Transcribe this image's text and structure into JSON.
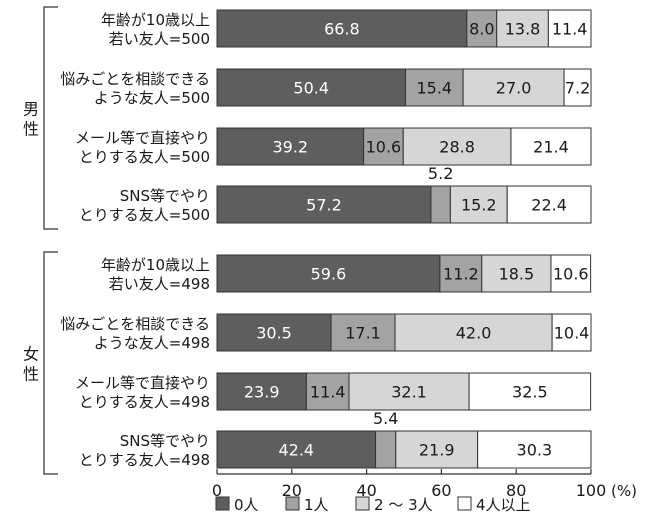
{
  "chart_data": {
    "type": "bar",
    "orientation": "horizontal",
    "stacked": true,
    "percent": true,
    "xlim": [
      0,
      100
    ],
    "x_ticks": [
      "0",
      "20",
      "40",
      "60",
      "80",
      "100"
    ],
    "x_unit": "(%)",
    "grid": false,
    "legend_position": "bottom",
    "series_colors": [
      "#5e5e5e",
      "#a3a3a3",
      "#d6d6d6",
      "#ffffff"
    ],
    "series": [
      {
        "name": "0人"
      },
      {
        "name": "1人"
      },
      {
        "name": "2 〜 3人"
      },
      {
        "name": "4人以上"
      }
    ],
    "groups": [
      {
        "label": "男性",
        "rows": [
          {
            "line1": "年齢が10歳以上",
            "line2": "若い友人=500",
            "values": [
              66.8,
              8.0,
              13.8,
              11.4
            ],
            "labels": [
              "66.8",
              "8.0",
              "13.8",
              "11.4"
            ]
          },
          {
            "line1": "悩みごとを相談できる",
            "line2": "ような友人=500",
            "values": [
              50.4,
              15.4,
              27.0,
              7.2
            ],
            "labels": [
              "50.4",
              "15.4",
              "27.0",
              "7.2"
            ]
          },
          {
            "line1": "メール等で直接やり",
            "line2": "とりする友人=500",
            "values": [
              39.2,
              10.6,
              28.8,
              21.4
            ],
            "labels": [
              "39.2",
              "10.6",
              "28.8",
              "21.4"
            ]
          },
          {
            "line1": "SNS等でやり",
            "line2": "とりする友人=500",
            "values": [
              57.2,
              5.2,
              15.2,
              22.4
            ],
            "labels": [
              "57.2",
              "5.2",
              "15.2",
              "22.4"
            ],
            "above": [
              1
            ]
          }
        ]
      },
      {
        "label": "女性",
        "rows": [
          {
            "line1": "年齢が10歳以上",
            "line2": "若い友人=498",
            "values": [
              59.6,
              11.2,
              18.5,
              10.6
            ],
            "labels": [
              "59.6",
              "11.2",
              "18.5",
              "10.6"
            ]
          },
          {
            "line1": "悩みごとを相談できる",
            "line2": "ような友人=498",
            "values": [
              30.5,
              17.1,
              42.0,
              10.4
            ],
            "labels": [
              "30.5",
              "17.1",
              "42.0",
              "10.4"
            ]
          },
          {
            "line1": "メール等で直接やり",
            "line2": "とりする友人=498",
            "values": [
              23.9,
              11.4,
              32.1,
              32.5
            ],
            "labels": [
              "23.9",
              "11.4",
              "32.1",
              "32.5"
            ]
          },
          {
            "line1": "SNS等でやり",
            "line2": "とりする友人=498",
            "values": [
              42.4,
              5.4,
              21.9,
              30.3
            ],
            "labels": [
              "42.4",
              "5.4",
              "21.9",
              "30.3"
            ],
            "above": [
              1
            ]
          }
        ]
      }
    ]
  }
}
